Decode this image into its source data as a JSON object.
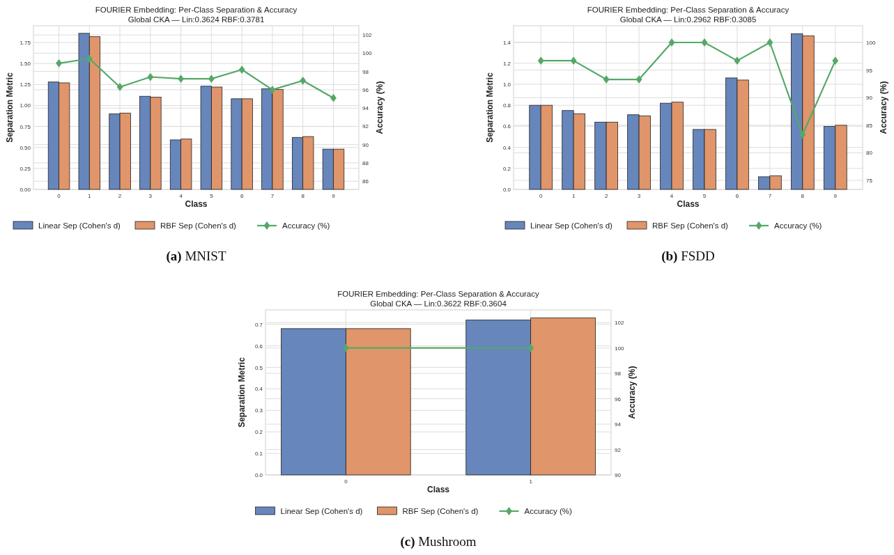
{
  "chart_data": [
    {
      "type": "bar",
      "title": "FOURIER Embedding: Per-Class Separation & Accuracy",
      "subtitle": "Global CKA — Lin:0.3624  RBF:0.3781",
      "xlabel": "Class",
      "ylabel": "Separation Metric",
      "y2label": "Accuracy (%)",
      "categories": [
        "0",
        "1",
        "2",
        "3",
        "4",
        "5",
        "6",
        "7",
        "8",
        "9"
      ],
      "series": [
        {
          "name": "Linear Sep (Cohen's d)",
          "color": "#6686bc",
          "values": [
            1.28,
            1.86,
            0.9,
            1.11,
            0.59,
            1.23,
            1.08,
            1.2,
            0.62,
            0.48
          ]
        },
        {
          "name": "RBF Sep (Cohen's d)",
          "color": "#e0956a",
          "values": [
            1.27,
            1.82,
            0.91,
            1.1,
            0.6,
            1.22,
            1.08,
            1.19,
            0.63,
            0.48
          ]
        },
        {
          "name": "Accuracy (%)",
          "type": "line",
          "axis": "y2",
          "color": "#55a868",
          "values": [
            98.9,
            99.4,
            96.3,
            97.4,
            97.2,
            97.2,
            98.2,
            96.0,
            97.0,
            95.1
          ]
        }
      ],
      "ylim": [
        0,
        1.95
      ],
      "yticks": [
        {
          "value": 0,
          "label": "0.00"
        },
        {
          "value": 0.25,
          "label": "0.25"
        },
        {
          "value": 0.5,
          "label": "0.50"
        },
        {
          "value": 0.75,
          "label": "0.75"
        },
        {
          "value": 1,
          "label": "1.00"
        },
        {
          "value": 1.25,
          "label": "1.25"
        },
        {
          "value": 1.5,
          "label": "1.50"
        },
        {
          "value": 1.75,
          "label": "1.75"
        }
      ],
      "y2lim": [
        85.1,
        103.0
      ],
      "y2ticks": [
        86,
        88,
        90,
        92,
        94,
        96,
        98,
        100,
        102
      ],
      "grid": true,
      "legend": "bottom",
      "marker": "diamond",
      "line_style": "solid",
      "annotations": [
        "(a) MNIST"
      ]
    },
    {
      "type": "bar",
      "title": "FOURIER Embedding: Per-Class Separation & Accuracy",
      "subtitle": "Global CKA — Lin:0.2962  RBF:0.3085",
      "xlabel": "Class",
      "ylabel": "Separation Metric",
      "y2label": "Accuracy (%)",
      "categories": [
        "0",
        "1",
        "2",
        "3",
        "4",
        "5",
        "6",
        "7",
        "8",
        "9"
      ],
      "series": [
        {
          "name": "Linear Sep (Cohen's d)",
          "color": "#6686bc",
          "values": [
            0.8,
            0.75,
            0.64,
            0.71,
            0.82,
            0.57,
            1.06,
            0.12,
            1.48,
            0.6
          ]
        },
        {
          "name": "RBF Sep (Cohen's d)",
          "color": "#e0956a",
          "values": [
            0.8,
            0.72,
            0.64,
            0.7,
            0.83,
            0.57,
            1.04,
            0.13,
            1.46,
            0.61
          ]
        },
        {
          "name": "Accuracy (%)",
          "type": "line",
          "axis": "y2",
          "color": "#55a868",
          "values": [
            96.7,
            96.7,
            93.3,
            93.3,
            100,
            100,
            96.7,
            100,
            83.3,
            96.7
          ]
        }
      ],
      "ylim": [
        0,
        1.556
      ],
      "yticks": [
        {
          "value": 0,
          "label": "0.0"
        },
        0.2,
        0.4,
        0.6,
        0.8,
        {
          "value": 1,
          "label": "1.0"
        },
        1.2,
        1.4
      ],
      "y2lim": [
        73.36,
        103.03
      ],
      "y2ticks": [
        75,
        80,
        85,
        90,
        95,
        100
      ],
      "grid": true,
      "legend": "bottom",
      "marker": "diamond",
      "line_style": "solid",
      "annotations": [
        "(b) FSDD"
      ]
    },
    {
      "type": "bar",
      "title": "FOURIER Embedding: Per-Class Separation & Accuracy",
      "subtitle": "Global CKA — Lin:0.3622  RBF:0.3604",
      "xlabel": "Class",
      "ylabel": "Separation Metric",
      "y2label": "Accuracy (%)",
      "categories": [
        "0",
        "1"
      ],
      "series": [
        {
          "name": "Linear Sep (Cohen's d)",
          "color": "#6686bc",
          "values": [
            0.68,
            0.72
          ]
        },
        {
          "name": "RBF Sep (Cohen's d)",
          "color": "#e0956a",
          "values": [
            0.68,
            0.73
          ]
        },
        {
          "name": "Accuracy (%)",
          "type": "line",
          "axis": "y2",
          "color": "#55a868",
          "values": [
            100,
            100
          ]
        }
      ],
      "ylim": [
        0,
        0.767
      ],
      "yticks": [
        {
          "value": 0,
          "label": "0.0"
        },
        0.1,
        0.2,
        0.3,
        0.4,
        0.5,
        0.6,
        0.7
      ],
      "y2lim": [
        90,
        103
      ],
      "y2ticks": [
        90,
        92,
        94,
        96,
        98,
        100,
        102
      ],
      "grid": true,
      "legend": "bottom",
      "marker": "diamond",
      "line_style": "solid",
      "annotations": [
        "(c) Mushroom"
      ]
    }
  ]
}
